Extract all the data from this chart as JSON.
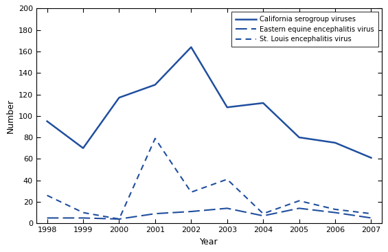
{
  "years": [
    1998,
    1999,
    2000,
    2001,
    2002,
    2003,
    2004,
    2005,
    2006,
    2007
  ],
  "california_serogroup": [
    95,
    70,
    117,
    129,
    164,
    108,
    112,
    80,
    75,
    61
  ],
  "eastern_equine": [
    5,
    5,
    4,
    9,
    11,
    14,
    7,
    14,
    10,
    5
  ],
  "st_louis": [
    26,
    10,
    4,
    79,
    29,
    41,
    9,
    21,
    13,
    9
  ],
  "line_color": "#1f4e9e",
  "ylim": [
    0,
    200
  ],
  "yticks": [
    0,
    20,
    40,
    60,
    80,
    100,
    120,
    140,
    160,
    180,
    200
  ],
  "xlim_min": 1998,
  "xlim_max": 2007,
  "xlabel": "Year",
  "ylabel": "Number",
  "legend_labels": [
    "California serogroup viruses",
    "Eastern equine encephalitis virus",
    "St. Louis encephalitis virus"
  ],
  "bg_color": "#ffffff"
}
